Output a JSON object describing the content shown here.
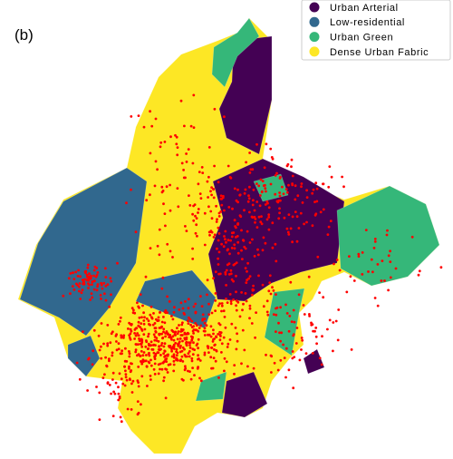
{
  "panel_label": "(b)",
  "legend": {
    "items": [
      {
        "label": "Urban Arterial",
        "color": "#440154"
      },
      {
        "label": "Low-residential",
        "color": "#31688e"
      },
      {
        "label": "Urban Green",
        "color": "#35b779"
      },
      {
        "label": "Dense Urban Fabric",
        "color": "#fde725"
      }
    ]
  }
}
